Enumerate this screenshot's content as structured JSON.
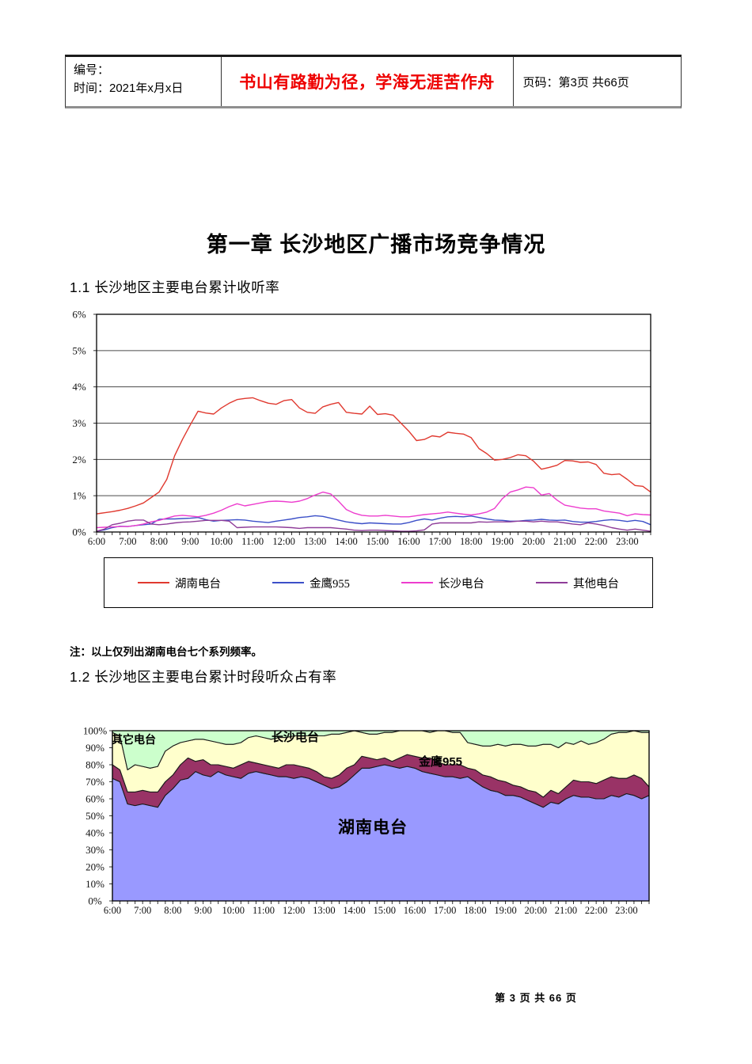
{
  "header": {
    "doc_no_label": "编号：",
    "time_label": "时间：2021年x月x日",
    "slogan": "书山有路勤为径，学海无涯苦作舟",
    "page_info": "页码：第3页 共66页"
  },
  "doc": {
    "title": "第一章 长沙地区广播市场竞争情况",
    "section1_heading": "1.1 长沙地区主要电台累计收听率",
    "note": "注：以上仅列出湖南电台七个系列频率。",
    "section2_heading": "1.2 长沙地区主要电台累计时段听众占有率",
    "footer": "第 3 页 共 66 页"
  },
  "chart_data": [
    {
      "type": "line",
      "title": "长沙地区主要电台累计收听率",
      "x_labels": [
        "6:00",
        "7:00",
        "8:00",
        "9:00",
        "10:00",
        "11:00",
        "12:00",
        "13:00",
        "14:00",
        "15:00",
        "16:00",
        "17:00",
        "18:00",
        "19:00",
        "20:00",
        "21:00",
        "22:00",
        "23:00"
      ],
      "points_per_label": 4,
      "x_interval_minutes": 15,
      "ylim": [
        0,
        6
      ],
      "ytick_step": 1,
      "ytick_suffix": "%",
      "grid": "horizontal",
      "legend_position": "bottom-box",
      "series": [
        {
          "name": "湖南电台",
          "color": "#e0392f",
          "values": [
            0.5,
            0.53,
            0.56,
            0.6,
            0.65,
            0.72,
            0.8,
            0.95,
            1.1,
            1.45,
            2.1,
            2.55,
            2.95,
            3.33,
            3.28,
            3.25,
            3.42,
            3.55,
            3.65,
            3.68,
            3.7,
            3.62,
            3.55,
            3.52,
            3.62,
            3.65,
            3.42,
            3.3,
            3.27,
            3.45,
            3.52,
            3.57,
            3.3,
            3.27,
            3.25,
            3.47,
            3.24,
            3.26,
            3.22,
            3.0,
            2.78,
            2.52,
            2.55,
            2.65,
            2.62,
            2.75,
            2.72,
            2.7,
            2.6,
            2.3,
            2.16,
            1.98,
            2.0,
            2.05,
            2.13,
            2.1,
            1.95,
            1.73,
            1.78,
            1.84,
            1.97,
            1.96,
            1.92,
            1.93,
            1.86,
            1.62,
            1.58,
            1.6,
            1.45,
            1.28,
            1.26,
            1.1
          ]
        },
        {
          "name": "金鹰955",
          "color": "#3c50c8",
          "values": [
            0.02,
            0.06,
            0.12,
            0.16,
            0.15,
            0.18,
            0.2,
            0.22,
            0.35,
            0.36,
            0.36,
            0.37,
            0.38,
            0.4,
            0.34,
            0.3,
            0.32,
            0.33,
            0.34,
            0.33,
            0.3,
            0.28,
            0.26,
            0.3,
            0.33,
            0.36,
            0.4,
            0.42,
            0.45,
            0.43,
            0.38,
            0.33,
            0.28,
            0.25,
            0.23,
            0.25,
            0.24,
            0.23,
            0.22,
            0.22,
            0.26,
            0.32,
            0.36,
            0.33,
            0.38,
            0.42,
            0.43,
            0.42,
            0.44,
            0.4,
            0.36,
            0.33,
            0.32,
            0.3,
            0.3,
            0.32,
            0.33,
            0.35,
            0.33,
            0.32,
            0.33,
            0.29,
            0.27,
            0.27,
            0.29,
            0.32,
            0.34,
            0.32,
            0.29,
            0.32,
            0.29,
            0.2
          ]
        },
        {
          "name": "长沙电台",
          "color": "#ed3dce",
          "values": [
            0.12,
            0.13,
            0.14,
            0.15,
            0.15,
            0.18,
            0.22,
            0.28,
            0.32,
            0.38,
            0.44,
            0.46,
            0.44,
            0.42,
            0.46,
            0.52,
            0.6,
            0.7,
            0.78,
            0.72,
            0.76,
            0.8,
            0.84,
            0.85,
            0.84,
            0.82,
            0.85,
            0.92,
            1.02,
            1.1,
            1.05,
            0.85,
            0.62,
            0.52,
            0.46,
            0.44,
            0.44,
            0.46,
            0.44,
            0.42,
            0.42,
            0.45,
            0.48,
            0.5,
            0.52,
            0.55,
            0.52,
            0.49,
            0.47,
            0.5,
            0.55,
            0.65,
            0.92,
            1.1,
            1.16,
            1.24,
            1.22,
            1.02,
            1.06,
            0.88,
            0.74,
            0.7,
            0.66,
            0.64,
            0.64,
            0.58,
            0.55,
            0.52,
            0.45,
            0.5,
            0.48,
            0.47
          ]
        },
        {
          "name": "其他电台",
          "color": "#8f3d99",
          "values": [
            0.02,
            0.08,
            0.2,
            0.24,
            0.3,
            0.33,
            0.33,
            0.22,
            0.2,
            0.22,
            0.25,
            0.27,
            0.28,
            0.3,
            0.32,
            0.32,
            0.32,
            0.3,
            0.12,
            0.13,
            0.14,
            0.14,
            0.14,
            0.14,
            0.13,
            0.12,
            0.1,
            0.12,
            0.12,
            0.12,
            0.12,
            0.1,
            0.08,
            0.05,
            0.04,
            0.05,
            0.05,
            0.04,
            0.03,
            0.02,
            0.02,
            0.03,
            0.06,
            0.22,
            0.25,
            0.25,
            0.25,
            0.25,
            0.25,
            0.28,
            0.27,
            0.28,
            0.28,
            0.28,
            0.3,
            0.3,
            0.28,
            0.3,
            0.28,
            0.28,
            0.25,
            0.22,
            0.2,
            0.25,
            0.22,
            0.18,
            0.12,
            0.08,
            0.05,
            0.08,
            0.05,
            0.02
          ]
        }
      ]
    },
    {
      "type": "area",
      "stacking": "percent",
      "title": "长沙地区主要电台累计时段听众占有率",
      "x_labels": [
        "6:00",
        "7:00",
        "8:00",
        "9:00",
        "10:00",
        "11:00",
        "12:00",
        "13:00",
        "14:00",
        "15:00",
        "16:00",
        "17:00",
        "18:00",
        "19:00",
        "20:00",
        "21:00",
        "22:00",
        "23:00"
      ],
      "points_per_label": 4,
      "x_interval_minutes": 15,
      "ylim": [
        0,
        100
      ],
      "ytick_step": 10,
      "ytick_suffix": "%",
      "grid": "none",
      "outline_color": "#1a1a1a",
      "series": [
        {
          "name": "湖南电台",
          "color": "#9999ff",
          "values": [
            72,
            70,
            57,
            56,
            57,
            56,
            55,
            62,
            66,
            71,
            72,
            76,
            74,
            73,
            76,
            74,
            73,
            72,
            75,
            76,
            75,
            74,
            73,
            73,
            72,
            73,
            72,
            70,
            68,
            66,
            67,
            70,
            74,
            78,
            78,
            79,
            80,
            79,
            78,
            79,
            78,
            76,
            75,
            74,
            73,
            73,
            72,
            73,
            70,
            67,
            65,
            64,
            62,
            62,
            61,
            59,
            57,
            55,
            58,
            57,
            60,
            62,
            61,
            61,
            60,
            60,
            62,
            61,
            63,
            62,
            60,
            62
          ]
        },
        {
          "name": "金鹰955",
          "color": "#993366",
          "values": [
            8,
            7,
            7,
            8,
            8,
            8,
            9,
            8,
            8,
            9,
            12,
            6,
            9,
            7,
            4,
            5,
            5,
            8,
            7,
            5,
            5,
            5,
            5,
            7,
            8,
            6,
            6,
            6,
            5,
            6,
            7,
            8,
            6,
            7,
            6,
            4,
            4,
            3,
            6,
            7,
            7,
            8,
            9,
            8,
            7,
            7,
            8,
            5,
            7,
            7,
            8,
            7,
            8,
            6,
            6,
            6,
            7,
            6,
            7,
            6,
            7,
            9,
            9,
            9,
            9,
            11,
            11,
            11,
            9,
            12,
            12,
            5
          ]
        },
        {
          "name": "长沙电台",
          "color": "#ffffcc",
          "values": [
            19,
            20,
            13,
            16,
            14,
            14,
            15,
            18,
            17,
            13,
            10,
            13,
            12,
            14,
            13,
            13,
            14,
            13,
            14,
            16,
            16,
            16,
            18,
            16,
            17,
            18,
            19,
            21,
            24,
            26,
            24,
            21,
            20,
            14,
            14,
            15,
            15,
            17,
            16,
            14,
            15,
            16,
            15,
            18,
            20,
            19,
            19,
            15,
            15,
            17,
            18,
            21,
            21,
            24,
            25,
            26,
            27,
            31,
            27,
            27,
            26,
            21,
            24,
            22,
            24,
            24,
            25,
            27,
            27,
            26,
            27,
            32
          ]
        },
        {
          "name": "其它电台",
          "color": "#ccffcc",
          "values": [
            1,
            3,
            23,
            20,
            21,
            22,
            21,
            12,
            9,
            7,
            6,
            5,
            5,
            6,
            7,
            8,
            8,
            7,
            4,
            3,
            4,
            5,
            4,
            4,
            3,
            3,
            3,
            3,
            3,
            2,
            2,
            1,
            0,
            1,
            2,
            2,
            1,
            1,
            0,
            0,
            0,
            0,
            1,
            0,
            0,
            1,
            1,
            7,
            8,
            9,
            9,
            8,
            9,
            8,
            8,
            9,
            9,
            8,
            8,
            10,
            7,
            8,
            6,
            8,
            7,
            5,
            2,
            1,
            1,
            0,
            1,
            1
          ]
        }
      ]
    }
  ]
}
